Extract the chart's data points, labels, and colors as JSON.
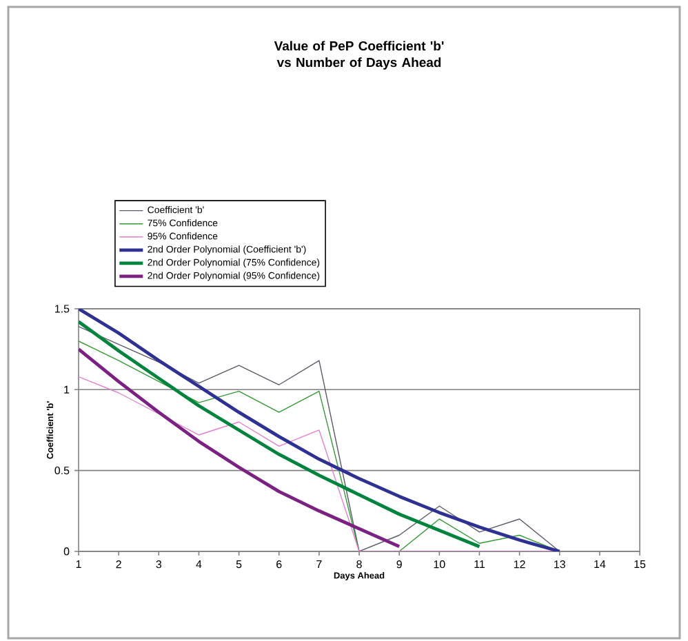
{
  "chart_data": {
    "type": "line",
    "title": "Value of PeP Coefficient 'b' vs Number of Days Ahead",
    "xlabel": "Days Ahead",
    "ylabel": "Coefficient 'b'",
    "x": [
      1,
      2,
      3,
      4,
      5,
      6,
      7,
      8,
      9,
      10,
      11,
      12,
      13
    ],
    "series": [
      {
        "name": "Coefficient 'b'",
        "color": "#5a5a6a",
        "values": [
          1.39,
          1.28,
          1.17,
          1.04,
          1.15,
          1.03,
          1.18,
          0,
          0.1,
          0.28,
          0.12,
          0.2,
          0
        ]
      },
      {
        "name": "75% Confidence",
        "color": "#339933",
        "values": [
          1.3,
          1.18,
          1.05,
          0.92,
          0.99,
          0.86,
          0.99,
          0,
          0,
          0.2,
          0.05,
          0.1,
          0
        ]
      },
      {
        "name": "95% Confidence",
        "color": "#e07fd0",
        "values": [
          1.08,
          0.98,
          0.85,
          0.72,
          0.8,
          0.65,
          0.75,
          0,
          0,
          0,
          0,
          0,
          0
        ]
      },
      {
        "name": "2nd Order Polynomial (Coefficient 'b')",
        "color": "#2e3192",
        "x": [
          1,
          2,
          3,
          4,
          5,
          6,
          7,
          8,
          9,
          10,
          11,
          12,
          13
        ],
        "values": [
          1.5,
          1.35,
          1.18,
          1.02,
          0.86,
          0.71,
          0.57,
          0.45,
          0.34,
          0.24,
          0.15,
          0.07,
          0
        ]
      },
      {
        "name": "2nd Order Polynomial (75% Confidence)",
        "color": "#00843d",
        "x": [
          1,
          2,
          3,
          4,
          5,
          6,
          7,
          8,
          9,
          10,
          11
        ],
        "values": [
          1.42,
          1.24,
          1.07,
          0.9,
          0.75,
          0.6,
          0.47,
          0.35,
          0.23,
          0.13,
          0.03
        ]
      },
      {
        "name": "2nd Order Polynomial (95% Confidence)",
        "color": "#7b2182",
        "x": [
          1,
          2,
          3,
          4,
          5,
          6,
          7,
          8,
          9
        ],
        "values": [
          1.25,
          1.05,
          0.86,
          0.68,
          0.52,
          0.37,
          0.25,
          0.14,
          0.03
        ]
      }
    ],
    "xlim": [
      1,
      15
    ],
    "ylim": [
      0,
      1.5
    ],
    "xticks": [
      1,
      2,
      3,
      4,
      5,
      6,
      7,
      8,
      9,
      10,
      11,
      12,
      13,
      14,
      15
    ],
    "yticks": [
      0,
      0.5,
      1,
      1.5
    ],
    "grid": "y",
    "legend": "top",
    "marker": "none",
    "line_style": "solid"
  }
}
